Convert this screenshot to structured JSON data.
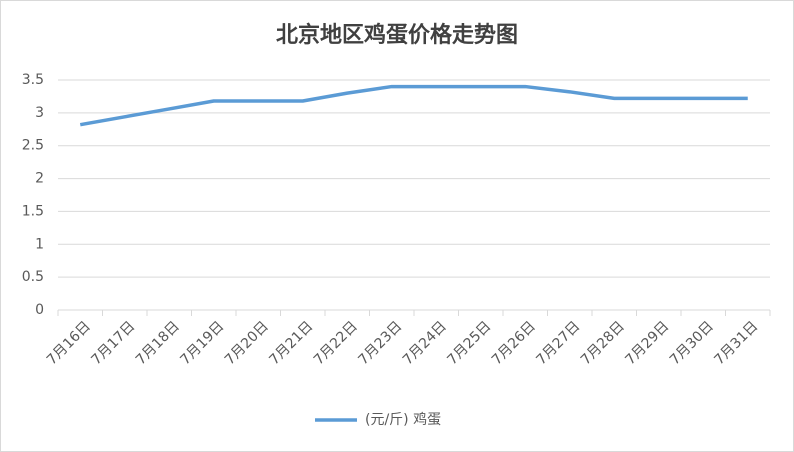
{
  "chart_data": {
    "type": "line",
    "title": "北京地区鸡蛋价格走势图",
    "categories": [
      "7月16日",
      "7月17日",
      "7月18日",
      "7月19日",
      "7月20日",
      "7月21日",
      "7月22日",
      "7月23日",
      "7月24日",
      "7月25日",
      "7月26日",
      "7月27日",
      "7月28日",
      "7月29日",
      "7月30日",
      "7月31日"
    ],
    "series": [
      {
        "name": "(元/斤) 鸡蛋",
        "color": "#5b9bd5",
        "values": [
          2.82,
          2.94,
          3.06,
          3.18,
          3.18,
          3.18,
          3.3,
          3.4,
          3.4,
          3.4,
          3.4,
          3.32,
          3.22,
          3.22,
          3.22,
          3.22
        ]
      }
    ],
    "ylim": [
      0,
      3.5
    ],
    "yticks": [
      0,
      0.5,
      1,
      1.5,
      2,
      2.5,
      3,
      3.5
    ],
    "grid": true
  }
}
